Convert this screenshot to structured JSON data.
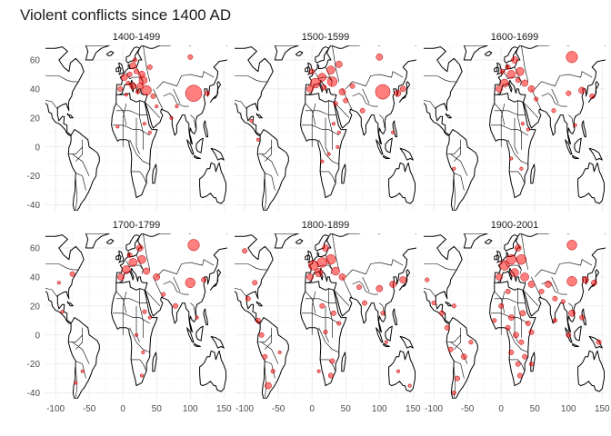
{
  "title": "Violent conflicts since 1400 AD",
  "chart_data": {
    "type": "scatter",
    "subtype": "faceted bubble map over world outline",
    "title": "Violent conflicts since 1400 AD",
    "xlabel": "",
    "ylabel": "",
    "xlim": [
      -115,
      155
    ],
    "ylim": [
      -44,
      70
    ],
    "x_ticks": [
      -100,
      -50,
      0,
      50,
      100,
      150
    ],
    "y_ticks": [
      -40,
      -20,
      0,
      20,
      40,
      60
    ],
    "x_tick_labels": [
      "-100",
      "-50",
      "0",
      "50",
      "100",
      "150"
    ],
    "y_tick_labels": [
      "-40",
      "-20",
      "0",
      "20",
      "40",
      "60"
    ],
    "point_color": "#ff0000",
    "outline_color": "#000000",
    "grid": true,
    "legend": "none",
    "facets": [
      {
        "label": "1400-1499",
        "points": [
          {
            "x": 105,
            "y": 37,
            "size": 10
          },
          {
            "x": 35,
            "y": 39,
            "size": 6
          },
          {
            "x": 30,
            "y": 46,
            "size": 5
          },
          {
            "x": 28,
            "y": 50,
            "size": 4
          },
          {
            "x": 15,
            "y": 56,
            "size": 4
          },
          {
            "x": 2,
            "y": 48,
            "size": 4
          },
          {
            "x": 15,
            "y": 42,
            "size": 4
          },
          {
            "x": 26,
            "y": 42,
            "size": 4
          },
          {
            "x": -4,
            "y": 40,
            "size": 3
          },
          {
            "x": 10,
            "y": 50,
            "size": 3
          },
          {
            "x": 20,
            "y": 52,
            "size": 3
          },
          {
            "x": 40,
            "y": 55,
            "size": 3
          },
          {
            "x": 100,
            "y": 62,
            "size": 3
          },
          {
            "x": 45,
            "y": 35,
            "size": 3
          },
          {
            "x": 125,
            "y": 37,
            "size": 3
          },
          {
            "x": 8,
            "y": 44,
            "size": 2.5
          },
          {
            "x": 22,
            "y": 38,
            "size": 2.5
          },
          {
            "x": 18,
            "y": 60,
            "size": 2.5
          },
          {
            "x": 50,
            "y": 28,
            "size": 2
          },
          {
            "x": 72,
            "y": 20,
            "size": 2
          },
          {
            "x": 32,
            "y": 16,
            "size": 2
          },
          {
            "x": 40,
            "y": 10,
            "size": 2
          },
          {
            "x": 80,
            "y": 28,
            "size": 2
          },
          {
            "x": 5,
            "y": 36,
            "size": 2
          },
          {
            "x": -8,
            "y": 14,
            "size": 2
          }
        ]
      },
      {
        "label": "1500-1599",
        "points": [
          {
            "x": 105,
            "y": 38,
            "size": 9
          },
          {
            "x": 5,
            "y": 44,
            "size": 6
          },
          {
            "x": 30,
            "y": 45,
            "size": 6
          },
          {
            "x": 15,
            "y": 48,
            "size": 5
          },
          {
            "x": 28,
            "y": 53,
            "size": 5
          },
          {
            "x": 127,
            "y": 37,
            "size": 4
          },
          {
            "x": 135,
            "y": 40,
            "size": 3.5
          },
          {
            "x": 40,
            "y": 57,
            "size": 4
          },
          {
            "x": 100,
            "y": 62,
            "size": 4
          },
          {
            "x": -3,
            "y": 40,
            "size": 4
          },
          {
            "x": 45,
            "y": 38,
            "size": 4
          },
          {
            "x": 18,
            "y": 41,
            "size": 3
          },
          {
            "x": 0,
            "y": 52,
            "size": 3
          },
          {
            "x": 50,
            "y": 32,
            "size": 3
          },
          {
            "x": 60,
            "y": 42,
            "size": 3
          },
          {
            "x": 75,
            "y": 25,
            "size": 3
          },
          {
            "x": 35,
            "y": 30,
            "size": 2.5
          },
          {
            "x": 32,
            "y": 16,
            "size": 2
          },
          {
            "x": 40,
            "y": 10,
            "size": 2
          },
          {
            "x": 15,
            "y": -10,
            "size": 2
          },
          {
            "x": 25,
            "y": -5,
            "size": 2
          },
          {
            "x": 38,
            "y": 0,
            "size": 2
          },
          {
            "x": 120,
            "y": 10,
            "size": 2
          },
          {
            "x": -90,
            "y": 18,
            "size": 2
          },
          {
            "x": -80,
            "y": 5,
            "size": 2
          }
        ]
      },
      {
        "label": "1600-1699",
        "points": [
          {
            "x": 105,
            "y": 62,
            "size": 7
          },
          {
            "x": 5,
            "y": 44,
            "size": 5
          },
          {
            "x": 15,
            "y": 50,
            "size": 5
          },
          {
            "x": 28,
            "y": 52,
            "size": 5
          },
          {
            "x": -3,
            "y": 40,
            "size": 4
          },
          {
            "x": 35,
            "y": 44,
            "size": 4
          },
          {
            "x": 20,
            "y": 60,
            "size": 4
          },
          {
            "x": 45,
            "y": 40,
            "size": 4
          },
          {
            "x": 120,
            "y": 39,
            "size": 4
          },
          {
            "x": 135,
            "y": 35,
            "size": 3
          },
          {
            "x": 10,
            "y": 55,
            "size": 3
          },
          {
            "x": 100,
            "y": 37,
            "size": 3
          },
          {
            "x": 2,
            "y": 52,
            "size": 3
          },
          {
            "x": 25,
            "y": 46,
            "size": 3
          },
          {
            "x": 52,
            "y": 33,
            "size": 2.5
          },
          {
            "x": 78,
            "y": 25,
            "size": 2.5
          },
          {
            "x": 32,
            "y": 16,
            "size": 2
          },
          {
            "x": 40,
            "y": 12,
            "size": 2
          },
          {
            "x": 15,
            "y": -8,
            "size": 2
          },
          {
            "x": 30,
            "y": -15,
            "size": 2
          },
          {
            "x": -70,
            "y": -15,
            "size": 2
          },
          {
            "x": 110,
            "y": 15,
            "size": 2
          }
        ]
      },
      {
        "label": "1700-1799",
        "points": [
          {
            "x": 105,
            "y": 62,
            "size": 7
          },
          {
            "x": 100,
            "y": 36,
            "size": 6
          },
          {
            "x": 5,
            "y": 45,
            "size": 5
          },
          {
            "x": 15,
            "y": 50,
            "size": 5
          },
          {
            "x": 28,
            "y": 52,
            "size": 5
          },
          {
            "x": 35,
            "y": 44,
            "size": 4
          },
          {
            "x": 25,
            "y": 60,
            "size": 4
          },
          {
            "x": 50,
            "y": 40,
            "size": 4
          },
          {
            "x": -3,
            "y": 40,
            "size": 4
          },
          {
            "x": 10,
            "y": 55,
            "size": 3
          },
          {
            "x": 120,
            "y": 38,
            "size": 3
          },
          {
            "x": -75,
            "y": 42,
            "size": 3
          },
          {
            "x": -95,
            "y": 36,
            "size": 2
          },
          {
            "x": 78,
            "y": 20,
            "size": 3
          },
          {
            "x": 32,
            "y": 16,
            "size": 2.5
          },
          {
            "x": 40,
            "y": 12,
            "size": 2
          },
          {
            "x": 20,
            "y": 0,
            "size": 2
          },
          {
            "x": 30,
            "y": -12,
            "size": 2
          },
          {
            "x": 28,
            "y": -28,
            "size": 2
          },
          {
            "x": -60,
            "y": -25,
            "size": 2
          },
          {
            "x": -70,
            "y": -33,
            "size": 2
          },
          {
            "x": -90,
            "y": 16,
            "size": 2
          },
          {
            "x": 110,
            "y": 12,
            "size": 2
          },
          {
            "x": 60,
            "y": 28,
            "size": 2.5
          }
        ]
      },
      {
        "label": "1800-1899",
        "points": [
          {
            "x": 2,
            "y": 48,
            "size": 6
          },
          {
            "x": 15,
            "y": 50,
            "size": 6
          },
          {
            "x": 28,
            "y": 52,
            "size": 6
          },
          {
            "x": 35,
            "y": 44,
            "size": 5
          },
          {
            "x": 10,
            "y": 43,
            "size": 5
          },
          {
            "x": 20,
            "y": 60,
            "size": 4
          },
          {
            "x": -3,
            "y": 40,
            "size": 4
          },
          {
            "x": 45,
            "y": 40,
            "size": 4
          },
          {
            "x": 100,
            "y": 32,
            "size": 4
          },
          {
            "x": 120,
            "y": 35,
            "size": 4
          },
          {
            "x": 135,
            "y": 38,
            "size": 4
          },
          {
            "x": -100,
            "y": 58,
            "size": 3
          },
          {
            "x": -85,
            "y": 36,
            "size": 3
          },
          {
            "x": -95,
            "y": 25,
            "size": 3
          },
          {
            "x": -80,
            "y": 10,
            "size": 3
          },
          {
            "x": -75,
            "y": 0,
            "size": 3
          },
          {
            "x": -70,
            "y": -15,
            "size": 3
          },
          {
            "x": -65,
            "y": -35,
            "size": 4
          },
          {
            "x": -58,
            "y": -25,
            "size": 2.5
          },
          {
            "x": -48,
            "y": -12,
            "size": 2
          },
          {
            "x": 15,
            "y": 20,
            "size": 3
          },
          {
            "x": 32,
            "y": 15,
            "size": 3
          },
          {
            "x": 40,
            "y": 8,
            "size": 2.5
          },
          {
            "x": 20,
            "y": 2,
            "size": 2.5
          },
          {
            "x": 30,
            "y": -18,
            "size": 3
          },
          {
            "x": 28,
            "y": -28,
            "size": 3
          },
          {
            "x": 10,
            "y": -25,
            "size": 2
          },
          {
            "x": 78,
            "y": 22,
            "size": 3
          },
          {
            "x": 70,
            "y": 33,
            "size": 3
          },
          {
            "x": 105,
            "y": 15,
            "size": 2.5
          },
          {
            "x": 110,
            "y": -5,
            "size": 2
          },
          {
            "x": 145,
            "y": -35,
            "size": 2
          },
          {
            "x": 128,
            "y": -25,
            "size": 2
          }
        ]
      },
      {
        "label": "1900-2001",
        "points": [
          {
            "x": 105,
            "y": 62,
            "size": 6
          },
          {
            "x": 105,
            "y": 37,
            "size": 6
          },
          {
            "x": 5,
            "y": 48,
            "size": 6
          },
          {
            "x": 15,
            "y": 52,
            "size": 6
          },
          {
            "x": 30,
            "y": 52,
            "size": 6
          },
          {
            "x": 20,
            "y": 43,
            "size": 5
          },
          {
            "x": 35,
            "y": 40,
            "size": 5
          },
          {
            "x": 45,
            "y": 35,
            "size": 4
          },
          {
            "x": 25,
            "y": 60,
            "size": 4
          },
          {
            "x": -3,
            "y": 40,
            "size": 4
          },
          {
            "x": 70,
            "y": 35,
            "size": 4
          },
          {
            "x": 60,
            "y": 30,
            "size": 3
          },
          {
            "x": 80,
            "y": 25,
            "size": 3
          },
          {
            "x": 125,
            "y": 38,
            "size": 4
          },
          {
            "x": 138,
            "y": 36,
            "size": 3.5
          },
          {
            "x": 105,
            "y": 15,
            "size": 4
          },
          {
            "x": 120,
            "y": 12,
            "size": 3
          },
          {
            "x": 100,
            "y": 0,
            "size": 3
          },
          {
            "x": 145,
            "y": -5,
            "size": 3
          },
          {
            "x": 10,
            "y": 30,
            "size": 3
          },
          {
            "x": 0,
            "y": 20,
            "size": 3
          },
          {
            "x": 15,
            "y": 12,
            "size": 3.5
          },
          {
            "x": 32,
            "y": 15,
            "size": 3.5
          },
          {
            "x": 40,
            "y": 8,
            "size": 3
          },
          {
            "x": 45,
            "y": 2,
            "size": 3
          },
          {
            "x": 22,
            "y": 0,
            "size": 3.5
          },
          {
            "x": 10,
            "y": 5,
            "size": 3
          },
          {
            "x": 30,
            "y": -5,
            "size": 3
          },
          {
            "x": 35,
            "y": -15,
            "size": 3
          },
          {
            "x": 25,
            "y": -20,
            "size": 3
          },
          {
            "x": 28,
            "y": -28,
            "size": 3
          },
          {
            "x": 15,
            "y": -12,
            "size": 3
          },
          {
            "x": 45,
            "y": -20,
            "size": 2.5
          },
          {
            "x": -10,
            "y": 10,
            "size": 2.5
          },
          {
            "x": -80,
            "y": 5,
            "size": 3
          },
          {
            "x": -88,
            "y": 15,
            "size": 3
          },
          {
            "x": -100,
            "y": 22,
            "size": 2.5
          },
          {
            "x": -75,
            "y": -10,
            "size": 3
          },
          {
            "x": -55,
            "y": -15,
            "size": 3.5
          },
          {
            "x": -65,
            "y": -30,
            "size": 3
          },
          {
            "x": -70,
            "y": -40,
            "size": 2.5
          },
          {
            "x": -45,
            "y": -5,
            "size": 2.5
          },
          {
            "x": -70,
            "y": 20,
            "size": 2.5
          },
          {
            "x": -110,
            "y": 38,
            "size": 2.5
          },
          {
            "x": 80,
            "y": 10,
            "size": 2.5
          },
          {
            "x": 92,
            "y": 23,
            "size": 2.5
          }
        ]
      }
    ]
  }
}
